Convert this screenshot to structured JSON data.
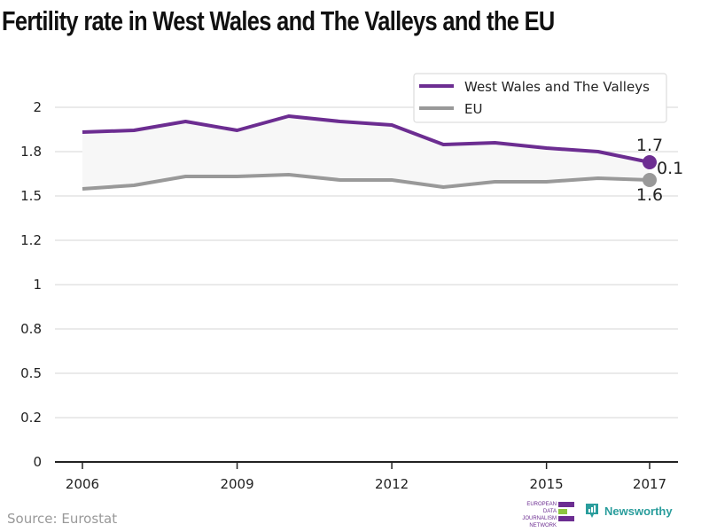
{
  "title": "Fertility rate in West Wales and The Valleys and the EU",
  "source": "Source: Eurostat",
  "logos": {
    "ejdn_lines": [
      "EUROPEAN",
      "DATA JOURNALISM",
      "NETWORK"
    ],
    "newsworthy": "Newsworthy"
  },
  "colors": {
    "series_primary": "#6c2d91",
    "series_secondary": "#999999",
    "band_fill": "#f7f7f7",
    "grid": "#e3e3e3",
    "ejdn_green": "#8dc63f",
    "newsworthy_teal": "#2a9d9c"
  },
  "chart_data": {
    "type": "line",
    "title": "Fertility rate in West Wales and The Valleys and the EU",
    "xlabel": "",
    "ylabel": "",
    "x": [
      2006,
      2007,
      2008,
      2009,
      2010,
      2011,
      2012,
      2013,
      2014,
      2015,
      2016,
      2017
    ],
    "x_ticks": [
      2006,
      2009,
      2012,
      2015,
      2017
    ],
    "y_ticks": [
      0,
      0.25,
      0.5,
      0.75,
      1,
      1.25,
      1.5,
      1.75,
      2
    ],
    "y_tick_labels": [
      "0",
      "0.2",
      "0.5",
      "0.8",
      "1",
      "1.2",
      "1.5",
      "1.8",
      "2"
    ],
    "ylim": [
      0,
      2.1
    ],
    "grid": true,
    "legend_position": "top-right",
    "series": [
      {
        "name": "West Wales and The Valleys",
        "values": [
          1.86,
          1.87,
          1.92,
          1.87,
          1.95,
          1.92,
          1.9,
          1.79,
          1.8,
          1.77,
          1.75,
          1.69
        ]
      },
      {
        "name": "EU",
        "values": [
          1.54,
          1.56,
          1.61,
          1.61,
          1.62,
          1.59,
          1.59,
          1.55,
          1.58,
          1.58,
          1.6,
          1.59
        ]
      }
    ],
    "annotations": {
      "end_label_primary": "1.7",
      "end_label_secondary": "1.6",
      "difference_label": "0.1"
    }
  }
}
